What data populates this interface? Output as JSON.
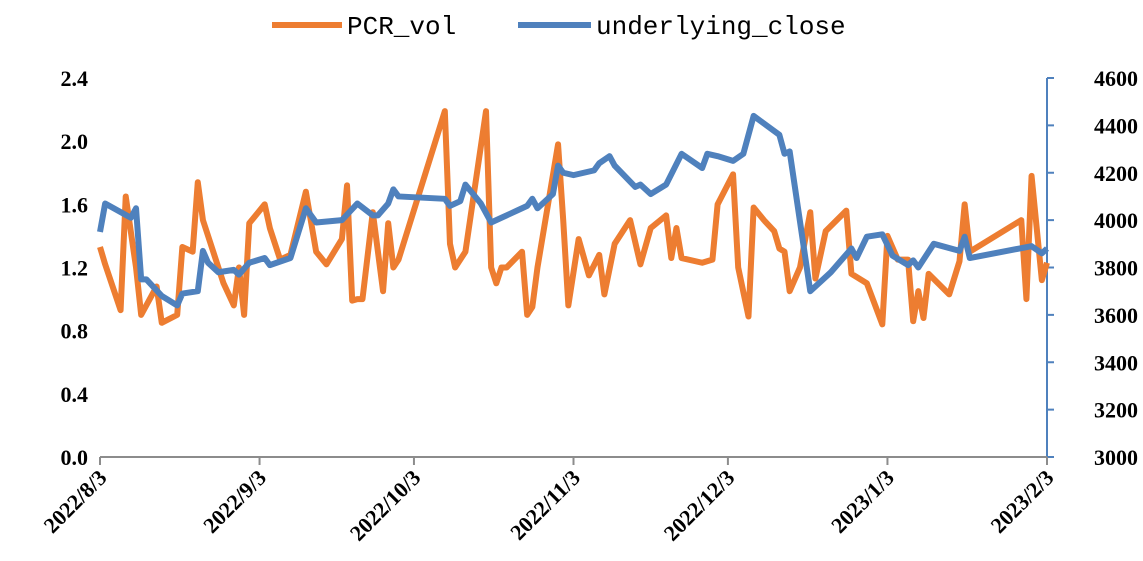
{
  "chart_data": {
    "type": "line",
    "ylim": [
      0,
      2.4
    ],
    "yticks": [
      {
        "value": 0,
        "label": "0.0"
      },
      0.4,
      0.8,
      1.2,
      1.6,
      {
        "value": 2,
        "label": "2.0"
      },
      2.4
    ],
    "y2lim": [
      3000,
      4600
    ],
    "y2ticks": [
      3000,
      3200,
      3400,
      3600,
      3800,
      4000,
      4200,
      4400,
      4600
    ],
    "xlim": [
      "2022-08-03",
      "2023-02-03"
    ],
    "xticks": [
      {
        "value": "2022-08-03",
        "label": "2022/8/3"
      },
      {
        "value": "2022-09-03",
        "label": "2022/9/3"
      },
      {
        "value": "2022-10-03",
        "label": "2022/10/3"
      },
      {
        "value": "2022-11-03",
        "label": "2022/11/3"
      },
      {
        "value": "2022-12-03",
        "label": "2022/12/3"
      },
      {
        "value": "2023-01-03",
        "label": "2023/1/3"
      },
      {
        "value": "2023-02-03",
        "label": "2023/2/3"
      }
    ],
    "legend": "top",
    "series": [
      {
        "name": "PCR_vol",
        "color": "#ed7d31",
        "axis": "y",
        "x": [
          "2022-08-03",
          "2022-08-04",
          "2022-08-07",
          "2022-08-08",
          "2022-08-10",
          "2022-08-11",
          "2022-08-14",
          "2022-08-15",
          "2022-08-18",
          "2022-08-19",
          "2022-08-21",
          "2022-08-22",
          "2022-08-23",
          "2022-08-25",
          "2022-08-27",
          "2022-08-29",
          "2022-08-30",
          "2022-08-31",
          "2022-09-01",
          "2022-09-04",
          "2022-09-05",
          "2022-09-07",
          "2022-09-09",
          "2022-09-12",
          "2022-09-14",
          "2022-09-16",
          "2022-09-19",
          "2022-09-20",
          "2022-09-21",
          "2022-09-22",
          "2022-09-23",
          "2022-09-25",
          "2022-09-27",
          "2022-09-28",
          "2022-09-29",
          "2022-09-30",
          "2022-10-09",
          "2022-10-10",
          "2022-10-11",
          "2022-10-13",
          "2022-10-17",
          "2022-10-18",
          "2022-10-19",
          "2022-10-20",
          "2022-10-21",
          "2022-10-24",
          "2022-10-25",
          "2022-10-26",
          "2022-10-27",
          "2022-10-31",
          "2022-11-01",
          "2022-11-02",
          "2022-11-04",
          "2022-11-06",
          "2022-11-08",
          "2022-11-09",
          "2022-11-11",
          "2022-11-14",
          "2022-11-16",
          "2022-11-18",
          "2022-11-21",
          "2022-11-22",
          "2022-11-23",
          "2022-11-24",
          "2022-11-28",
          "2022-11-30",
          "2022-12-01",
          "2022-12-04",
          "2022-12-05",
          "2022-12-07",
          "2022-12-08",
          "2022-12-10",
          "2022-12-12",
          "2022-12-13",
          "2022-12-14",
          "2022-12-15",
          "2022-12-17",
          "2022-12-19",
          "2022-12-20",
          "2022-12-22",
          "2022-12-26",
          "2022-12-27",
          "2022-12-30",
          "2023-01-02",
          "2023-01-03",
          "2023-01-05",
          "2023-01-07",
          "2023-01-08",
          "2023-01-09",
          "2023-01-10",
          "2023-01-11",
          "2023-01-15",
          "2023-01-17",
          "2023-01-18",
          "2023-01-19",
          "2023-01-29",
          "2023-01-30",
          "2023-01-31",
          "2023-02-02",
          "2023-02-03"
        ],
        "values": [
          1.33,
          1.22,
          0.93,
          1.65,
          1.2,
          0.9,
          1.08,
          0.85,
          0.9,
          1.33,
          1.3,
          1.74,
          1.5,
          1.3,
          1.1,
          0.96,
          1.2,
          0.9,
          1.48,
          1.6,
          1.45,
          1.25,
          1.28,
          1.68,
          1.3,
          1.22,
          1.38,
          1.72,
          0.99,
          1.0,
          1.0,
          1.55,
          1.05,
          1.48,
          1.2,
          1.25,
          2.19,
          1.35,
          1.2,
          1.3,
          2.19,
          1.2,
          1.1,
          1.2,
          1.2,
          1.3,
          0.9,
          0.95,
          1.2,
          1.98,
          1.5,
          0.96,
          1.38,
          1.15,
          1.28,
          1.03,
          1.35,
          1.5,
          1.22,
          1.45,
          1.53,
          1.26,
          1.45,
          1.26,
          1.23,
          1.25,
          1.6,
          1.79,
          1.2,
          0.89,
          1.58,
          1.5,
          1.43,
          1.32,
          1.3,
          1.05,
          1.2,
          1.55,
          1.13,
          1.43,
          1.56,
          1.16,
          1.1,
          0.84,
          1.4,
          1.25,
          1.25,
          0.86,
          1.05,
          0.88,
          1.16,
          1.03,
          1.24,
          1.6,
          1.3,
          1.5,
          1.0,
          1.78,
          1.12,
          1.23
        ]
      },
      {
        "name": "underlying_close",
        "color": "#4f81bd",
        "axis": "y2",
        "x": [
          "2022-08-03",
          "2022-08-04",
          "2022-08-09",
          "2022-08-10",
          "2022-08-11",
          "2022-08-12",
          "2022-08-15",
          "2022-08-18",
          "2022-08-19",
          "2022-08-22",
          "2022-08-23",
          "2022-08-24",
          "2022-08-26",
          "2022-08-29",
          "2022-08-30",
          "2022-09-01",
          "2022-09-04",
          "2022-09-05",
          "2022-09-09",
          "2022-09-12",
          "2022-09-14",
          "2022-09-19",
          "2022-09-22",
          "2022-09-25",
          "2022-09-26",
          "2022-09-28",
          "2022-09-29",
          "2022-09-30",
          "2022-10-09",
          "2022-10-10",
          "2022-10-12",
          "2022-10-13",
          "2022-10-16",
          "2022-10-18",
          "2022-10-20",
          "2022-10-23",
          "2022-10-25",
          "2022-10-26",
          "2022-10-27",
          "2022-10-30",
          "2022-10-31",
          "2022-11-01",
          "2022-11-03",
          "2022-11-07",
          "2022-11-08",
          "2022-11-10",
          "2022-11-11",
          "2022-11-15",
          "2022-11-16",
          "2022-11-18",
          "2022-11-21",
          "2022-11-24",
          "2022-11-28",
          "2022-11-29",
          "2022-12-01",
          "2022-12-04",
          "2022-12-06",
          "2022-12-08",
          "2022-12-13",
          "2022-12-14",
          "2022-12-15",
          "2022-12-19",
          "2022-12-23",
          "2022-12-27",
          "2022-12-28",
          "2022-12-30",
          "2023-01-02",
          "2023-01-04",
          "2023-01-07",
          "2023-01-08",
          "2023-01-09",
          "2023-01-12",
          "2023-01-17",
          "2023-01-18",
          "2023-01-19",
          "2023-01-31",
          "2023-02-02",
          "2023-02-03"
        ],
        "values": [
          3950,
          4070,
          4010,
          4050,
          3750,
          3750,
          3680,
          3640,
          3690,
          3700,
          3870,
          3820,
          3780,
          3790,
          3770,
          3820,
          3840,
          3810,
          3840,
          4050,
          3990,
          4000,
          4070,
          4020,
          4020,
          4070,
          4130,
          4100,
          4090,
          4060,
          4080,
          4150,
          4070,
          3990,
          4010,
          4040,
          4060,
          4090,
          4050,
          4110,
          4230,
          4200,
          4190,
          4210,
          4240,
          4270,
          4230,
          4140,
          4150,
          4110,
          4150,
          4280,
          4220,
          4280,
          4270,
          4250,
          4280,
          4440,
          4360,
          4280,
          4290,
          3700,
          3780,
          3880,
          3840,
          3930,
          3940,
          3850,
          3810,
          3830,
          3800,
          3900,
          3870,
          3930,
          3840,
          3890,
          3860,
          3880
        ]
      }
    ]
  }
}
